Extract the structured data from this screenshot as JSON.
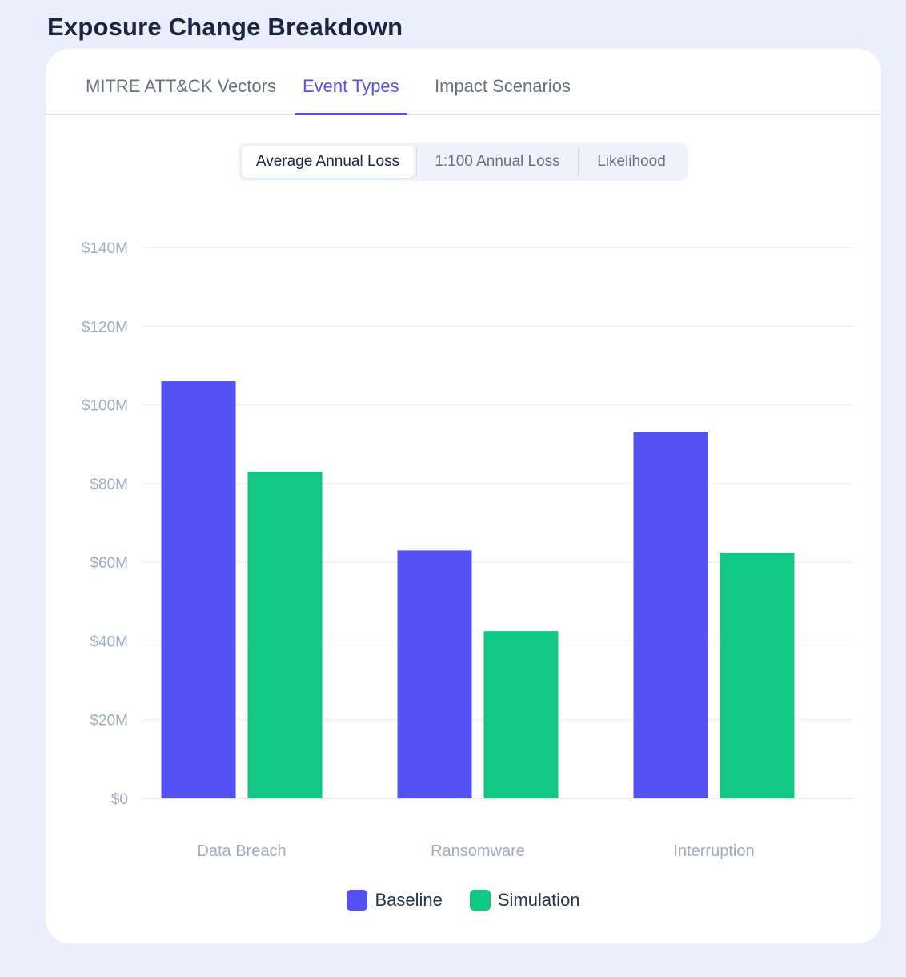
{
  "page": {
    "title": "Exposure Change Breakdown"
  },
  "tabs": [
    {
      "label": "MITRE ATT&CK Vectors",
      "active": false
    },
    {
      "label": "Event Types",
      "active": true
    },
    {
      "label": "Impact Scenarios",
      "active": false
    }
  ],
  "metric_toggle": [
    {
      "label": "Average Annual Loss",
      "active": true
    },
    {
      "label": "1:100 Annual Loss",
      "active": false
    },
    {
      "label": "Likelihood",
      "active": false
    }
  ],
  "colors": {
    "baseline": "#5552f5",
    "simulation": "#10c783",
    "accent": "#5552ea"
  },
  "chart_data": {
    "type": "bar",
    "title": "",
    "xlabel": "",
    "ylabel": "",
    "categories": [
      "Data Breach",
      "Ransomware",
      "Interruption"
    ],
    "series": [
      {
        "name": "Baseline",
        "values": [
          106,
          63,
          93
        ]
      },
      {
        "name": "Simulation",
        "values": [
          83,
          42.5,
          62.5
        ]
      }
    ],
    "ylim": [
      0,
      140
    ],
    "yticks": [
      0,
      20,
      40,
      60,
      80,
      100,
      120,
      140
    ],
    "ytick_labels": [
      "$0",
      "$20M",
      "$40M",
      "$60M",
      "$80M",
      "$100M",
      "$120M",
      "$140M"
    ],
    "grid": true,
    "legend": "bottom-center"
  }
}
